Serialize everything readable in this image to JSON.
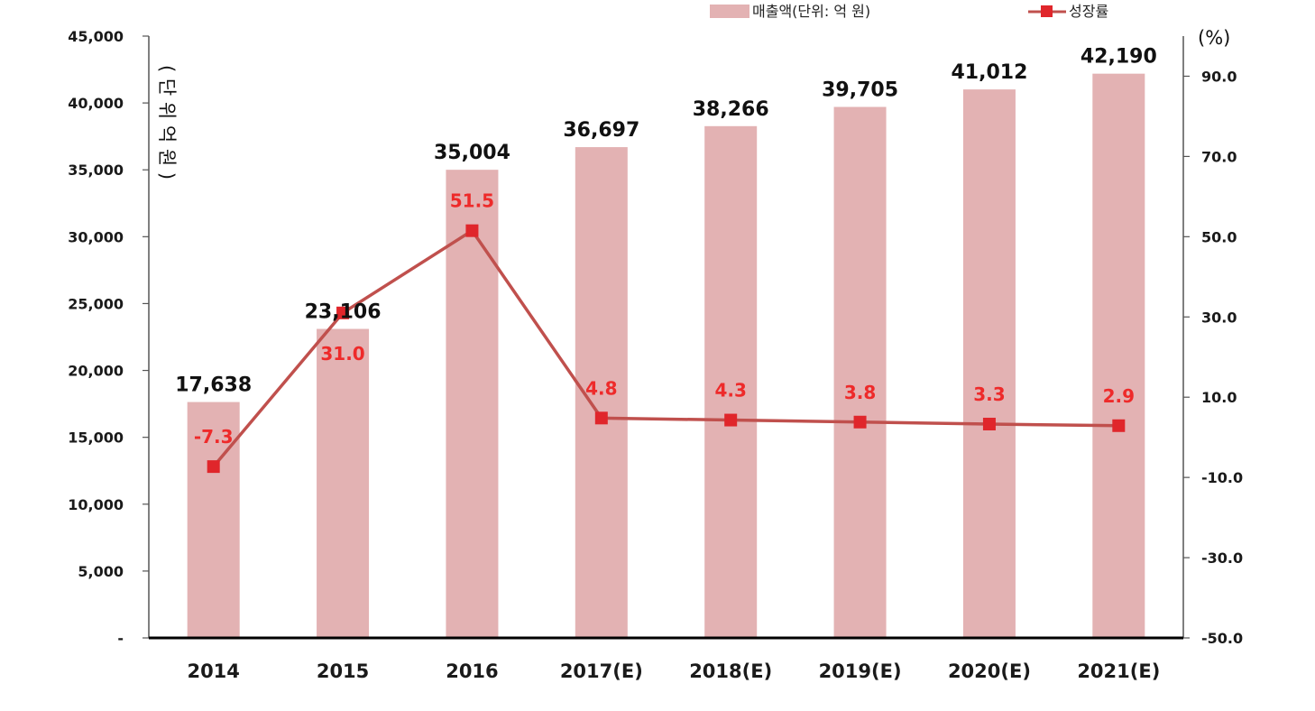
{
  "chart_data": {
    "type": "bar",
    "categories": [
      "2014",
      "2015",
      "2016",
      "2017(E)",
      "2018(E)",
      "2019(E)",
      "2020(E)",
      "2021(E)"
    ],
    "series": [
      {
        "name": "매출액(단위: 억 원)",
        "type": "bar",
        "axis": "left",
        "values": [
          17638,
          23106,
          35004,
          36697,
          38266,
          39705,
          41012,
          42190
        ],
        "labels": [
          "17,638",
          "23,106",
          "35,004",
          "36,697",
          "38,266",
          "39,705",
          "41,012",
          "42,190"
        ]
      },
      {
        "name": "성장률",
        "type": "line",
        "axis": "right",
        "values": [
          -7.3,
          31.0,
          51.5,
          4.8,
          4.3,
          3.8,
          3.3,
          2.9
        ],
        "labels": [
          "-7.3",
          "31.0",
          "51.5",
          "4.8",
          "4.3",
          "3.8",
          "3.3",
          "2.9"
        ]
      }
    ],
    "y_left": {
      "ylim": [
        0,
        45000
      ],
      "ticks": [
        "-",
        "5,000",
        "10,000",
        "15,000",
        "20,000",
        "25,000",
        "30,000",
        "35,000",
        "40,000",
        "45,000"
      ],
      "label": "( 단 위 억 원 )"
    },
    "y_right": {
      "ylim": [
        -50,
        100
      ],
      "ticks": [
        "-50.0",
        "-30.0",
        "-10.0",
        "10.0",
        "30.0",
        "50.0",
        "70.0",
        "90.0"
      ],
      "tick_values": [
        -50,
        -30,
        -10,
        10,
        30,
        50,
        70,
        90
      ],
      "unit": "(%)"
    },
    "legend": {
      "position": "top",
      "entries": [
        "매출액(단위: 억 원)",
        "성장률"
      ]
    },
    "grid": false,
    "colors": {
      "bar": "#e3b2b3",
      "line": "#c0504d",
      "marker": "#e0262b",
      "rate_label": "#ee2a2a",
      "bar_label": "#111111"
    }
  }
}
